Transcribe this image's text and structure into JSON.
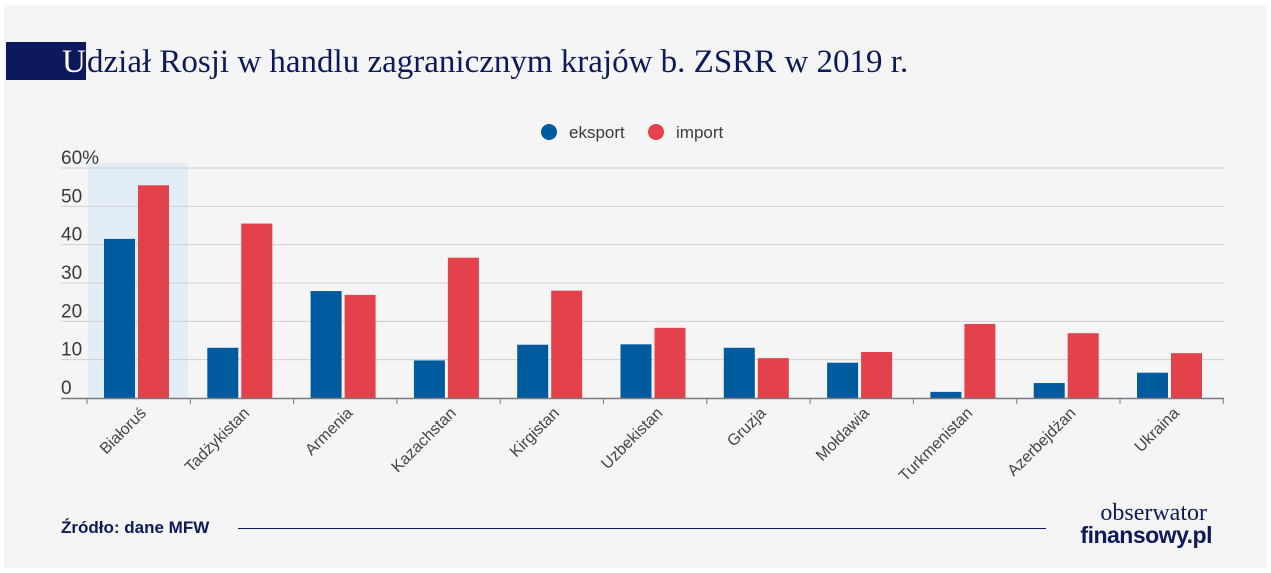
{
  "title": {
    "first_letter": "U",
    "rest": "dział Rosji w handlu zagranicznym krajów b. ZSRR w 2019 r."
  },
  "colors": {
    "eksport": "#005a9e",
    "import": "#e3424a",
    "highlight": "#e3edf6",
    "brand": "#0c1a5b"
  },
  "chart_data": {
    "type": "bar",
    "title": "Udział Rosji w handlu zagranicznym krajów b. ZSRR w 2019 r.",
    "xlabel": "",
    "ylabel": "",
    "ylim": [
      0,
      60
    ],
    "y_ticks": [
      "0",
      "10",
      "20",
      "30",
      "40",
      "50",
      "60%"
    ],
    "y_tick_values": [
      0,
      10,
      20,
      30,
      40,
      50,
      60
    ],
    "legend_position": "top-center",
    "highlighted_category": "Białoruś",
    "categories": [
      "Białoruś",
      "Tadżykistan",
      "Armenia",
      "Kazachstan",
      "Kirgistan",
      "Uzbekistan",
      "Gruzja",
      "Mołdawia",
      "Turkmenistan",
      "Azerbejdżan",
      "Ukraina"
    ],
    "series": [
      {
        "name": "eksport",
        "values": [
          41.5,
          13.1,
          27.9,
          9.8,
          13.9,
          14.0,
          13.1,
          9.2,
          1.6,
          3.9,
          6.6
        ]
      },
      {
        "name": "import",
        "values": [
          55.5,
          45.5,
          26.9,
          36.6,
          28.0,
          18.3,
          10.4,
          12.0,
          19.3,
          16.9,
          11.7
        ]
      }
    ]
  },
  "source": "Źródło: dane MFW",
  "logo": {
    "line1": "obserwator",
    "line2": "finansowy.pl"
  }
}
